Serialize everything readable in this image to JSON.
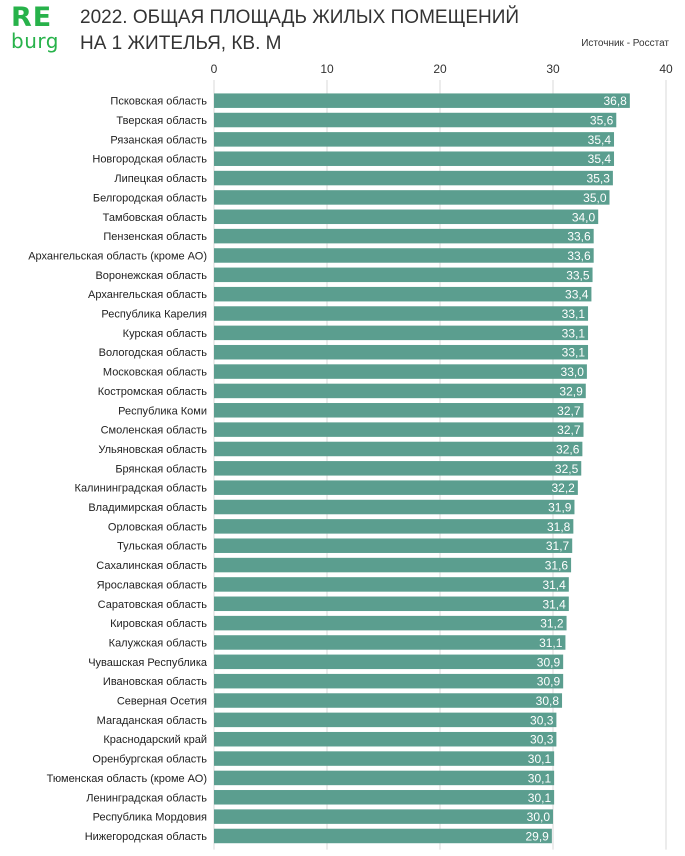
{
  "logo": {
    "line1": "RE",
    "line2": "burg"
  },
  "header": {
    "title_line1": "2022. ОБЩАЯ ПЛОЩАДЬ ЖИЛЫХ ПОМЕЩЕНИЙ",
    "title_line2": "НА 1 ЖИТЕЛЬЯ,  КВ. М",
    "source": "Источник - Росстат"
  },
  "colors": {
    "bar": "#5b9e8f",
    "grid": "#d9d9d9",
    "label": "#222222",
    "value_label": "#ffffff",
    "logo": "#27b24a"
  },
  "chart_data": {
    "type": "bar",
    "orientation": "horizontal",
    "title": "2022. ОБЩАЯ ПЛОЩАДЬ ЖИЛЫХ ПОМЕЩЕНИЙ НА 1 ЖИТЕЛЬЯ,  КВ. М",
    "xlim": [
      0,
      40
    ],
    "xticks": [
      0,
      10,
      20,
      30,
      40
    ],
    "xtick_labels": [
      "0",
      "10",
      "20",
      "30",
      "40"
    ],
    "axis_position": "top",
    "grid": true,
    "categories": [
      "Псковская область",
      "Тверская область",
      "Рязанская область",
      "Новгородская область",
      "Липецкая область",
      "Белгородская область",
      "Тамбовская область",
      "Пензенская область",
      "Архангельская область (кроме АО)",
      "Воронежская область",
      "Архангельская область",
      "Республика Карелия",
      "Курская область",
      "Вологодская область",
      "Московская область",
      "Костромская область",
      "Республика Коми",
      "Смоленская область",
      "Ульяновская область",
      "Брянская область",
      "Калининградская область",
      "Владимирская область",
      "Орловская область",
      "Тульская область",
      "Сахалинская область",
      "Ярославская область",
      "Саратовская область",
      "Кировская область",
      "Калужская область",
      "Чувашская Республика",
      "Ивановская область",
      "Северная Осетия",
      "Магаданская область",
      "Краснодарский край",
      "Оренбургская область",
      "Тюменская область (кроме АО)",
      "Ленинградская область",
      "Республика Мордовия",
      "Нижегородская область"
    ],
    "values": [
      36.8,
      35.6,
      35.4,
      35.4,
      35.3,
      35.0,
      34.0,
      33.6,
      33.6,
      33.5,
      33.4,
      33.1,
      33.1,
      33.1,
      33.0,
      32.9,
      32.7,
      32.7,
      32.6,
      32.5,
      32.2,
      31.9,
      31.8,
      31.7,
      31.6,
      31.4,
      31.4,
      31.2,
      31.1,
      30.9,
      30.9,
      30.8,
      30.3,
      30.3,
      30.1,
      30.1,
      30.1,
      30.0,
      29.9
    ],
    "value_labels": [
      "36,8",
      "35,6",
      "35,4",
      "35,4",
      "35,3",
      "35,0",
      "34,0",
      "33,6",
      "33,6",
      "33,5",
      "33,4",
      "33,1",
      "33,1",
      "33,1",
      "33,0",
      "32,9",
      "32,7",
      "32,7",
      "32,6",
      "32,5",
      "32,2",
      "31,9",
      "31,8",
      "31,7",
      "31,6",
      "31,4",
      "31,4",
      "31,2",
      "31,1",
      "30,9",
      "30,9",
      "30,8",
      "30,3",
      "30,3",
      "30,1",
      "30,1",
      "30,1",
      "30,0",
      "29,9"
    ]
  }
}
